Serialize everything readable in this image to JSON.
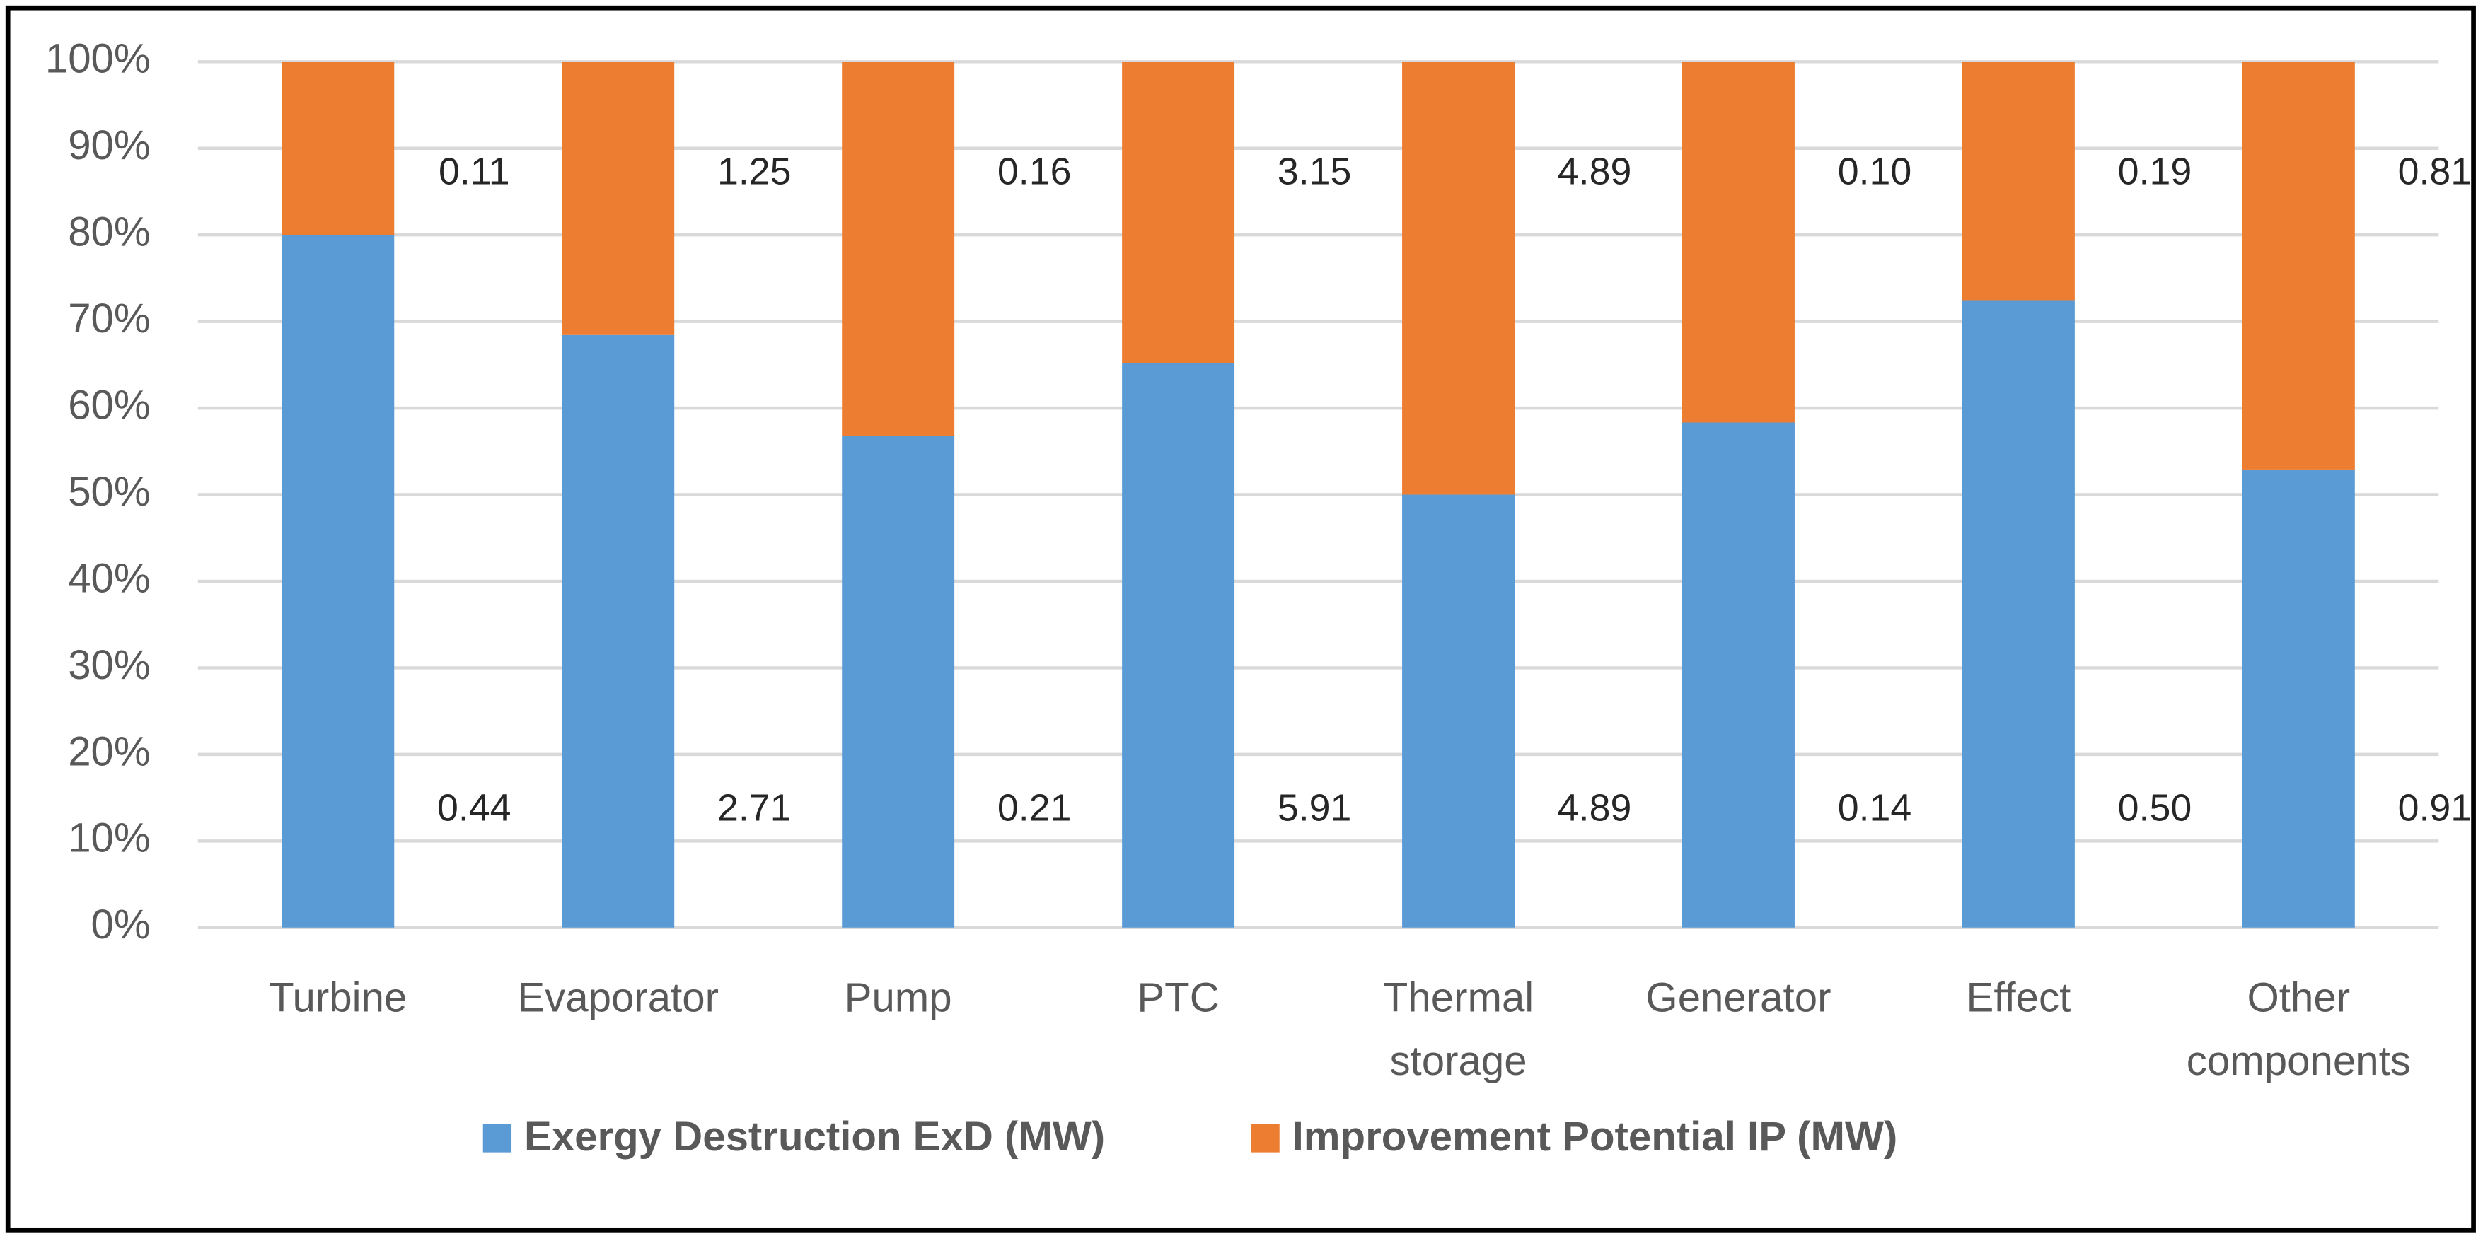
{
  "chart_data": {
    "type": "bar",
    "stacked_percent": true,
    "categories": [
      "Turbine",
      "Evaporator",
      "Pump",
      "PTC",
      "Thermal storage",
      "Generator",
      "Effect",
      "Other components"
    ],
    "series": [
      {
        "name": "Exergy Destruction ExD (MW)",
        "color": "#5b9bd5",
        "values": [
          0.44,
          2.71,
          0.21,
          5.91,
          4.89,
          0.14,
          0.5,
          0.91
        ],
        "value_labels": [
          "0.44",
          "2.71",
          "0.21",
          "5.91",
          "4.89",
          "0.14",
          "0.50",
          "0.91"
        ]
      },
      {
        "name": "Improvement Potential IP (MW)",
        "color": "#ed7d31",
        "values": [
          0.11,
          1.25,
          0.16,
          3.15,
          4.89,
          0.1,
          0.19,
          0.81
        ],
        "value_labels": [
          "0.11",
          "1.25",
          "0.16",
          "3.15",
          "4.89",
          "0.10",
          "0.19",
          "0.81"
        ]
      }
    ],
    "ylim": [
      0,
      100
    ],
    "yticks": [
      {
        "value": 0,
        "label": "0%"
      },
      {
        "value": 10,
        "label": "10%"
      },
      {
        "value": 20,
        "label": "20%"
      },
      {
        "value": 30,
        "label": "30%"
      },
      {
        "value": 40,
        "label": "40%"
      },
      {
        "value": 50,
        "label": "50%"
      },
      {
        "value": 60,
        "label": "60%"
      },
      {
        "value": 70,
        "label": "70%"
      },
      {
        "value": 80,
        "label": "80%"
      },
      {
        "value": 90,
        "label": "90%"
      },
      {
        "value": 100,
        "label": "100%"
      }
    ],
    "grid": true,
    "legend": "bottom"
  }
}
